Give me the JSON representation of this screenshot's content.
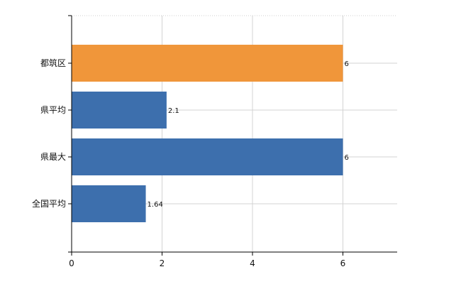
{
  "chart_data": {
    "type": "bar",
    "orientation": "horizontal",
    "categories": [
      "都筑区",
      "県平均",
      "県最大",
      "全国平均"
    ],
    "values": [
      6,
      2.1,
      6,
      1.64
    ],
    "data_labels": [
      "6",
      "2.1",
      "6",
      "1.64"
    ],
    "bar_colors": [
      "#f0963a",
      "#3d6fad",
      "#3d6fad",
      "#3d6fad"
    ],
    "title": "",
    "xlabel": "",
    "ylabel": "",
    "xlim": [
      0,
      7.2
    ],
    "x_ticks": [
      0,
      2,
      4,
      6
    ],
    "grid": true
  }
}
